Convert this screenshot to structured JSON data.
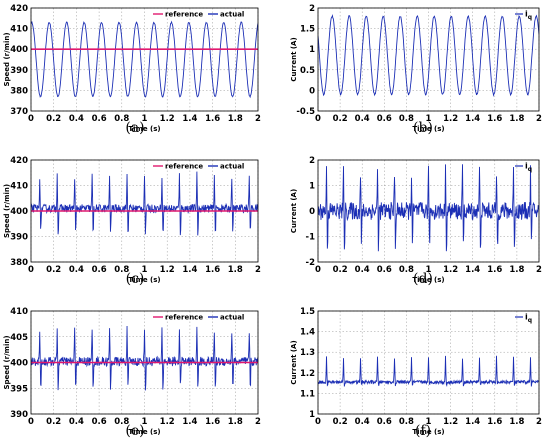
{
  "colors": {
    "reference": "#e0186e",
    "actual": "#1c2fb5",
    "iq": "#1c2fb5",
    "grid": "#9a9a9a",
    "axis": "#000000"
  },
  "panel_labels": [
    "(a)",
    "(b)",
    "(c)",
    "(d)",
    "(e)",
    "(f)"
  ],
  "chart_data": [
    {
      "id": "a",
      "type": "line",
      "xlabel": "Time  (s)",
      "ylabel": "Speed (r/min)",
      "xlim": [
        0,
        2
      ],
      "ylim": [
        370,
        420
      ],
      "xticks": [
        "0",
        "0.2",
        "0.4",
        "0.6",
        "0.8",
        "1",
        "1.2",
        "1.4",
        "1.6",
        "1.8",
        "2"
      ],
      "yticks": [
        "370",
        "380",
        "390",
        "400",
        "410",
        "420"
      ],
      "grid": true,
      "legend": {
        "placement": "top-right",
        "entries": [
          "reference",
          "actual"
        ]
      },
      "series": [
        {
          "name": "reference",
          "kind": "constant",
          "value": 400
        },
        {
          "name": "actual",
          "kind": "sine",
          "offset": 395,
          "amplitude": 18,
          "cycles": 13,
          "phase": 1.3,
          "noise": 0.3
        }
      ]
    },
    {
      "id": "b",
      "type": "line",
      "xlabel": "Time  (s)",
      "ylabel": "Current  (A)",
      "xlim": [
        0,
        2
      ],
      "ylim": [
        -0.5,
        2
      ],
      "xticks": [
        "0",
        "0.2",
        "0.4",
        "0.6",
        "0.8",
        "1",
        "1.2",
        "1.4",
        "1.6",
        "1.8",
        "2"
      ],
      "yticks": [
        "-0.5",
        "0",
        "0.5",
        "1",
        "1.5",
        "2"
      ],
      "grid": true,
      "legend": {
        "placement": "top-right",
        "entries": [
          "i_q"
        ]
      },
      "series": [
        {
          "name": "i_q",
          "kind": "sine",
          "offset": 0.85,
          "amplitude": 0.95,
          "cycles": 13,
          "phase": 2.6,
          "noise": 0.02
        }
      ]
    },
    {
      "id": "c",
      "type": "line",
      "xlabel": "Time  (s)",
      "ylabel": "Speed (r/min)",
      "xlim": [
        0,
        2
      ],
      "ylim": [
        380,
        420
      ],
      "xticks": [
        "0",
        "0.2",
        "0.4",
        "0.6",
        "0.8",
        "1",
        "1.2",
        "1.4",
        "1.6",
        "1.8",
        "2"
      ],
      "yticks": [
        "380",
        "390",
        "400",
        "410",
        "420"
      ],
      "grid": true,
      "legend": {
        "placement": "top-right",
        "entries": [
          "reference",
          "actual"
        ]
      },
      "series": [
        {
          "name": "reference",
          "kind": "constant",
          "value": 400
        },
        {
          "name": "actual",
          "kind": "spiky",
          "base": 401,
          "up": 13,
          "down": -12,
          "cycles": 13,
          "noise": 1.6
        }
      ]
    },
    {
      "id": "d",
      "type": "line",
      "xlabel": "Time  (s)",
      "ylabel": "Current  (A)",
      "xlim": [
        0,
        2
      ],
      "ylim": [
        -2,
        2
      ],
      "xticks": [
        "0",
        "0.2",
        "0.4",
        "0.6",
        "0.8",
        "1",
        "1.2",
        "1.4",
        "1.6",
        "1.8",
        "2"
      ],
      "yticks": [
        "-2",
        "-1",
        "0",
        "1",
        "2"
      ],
      "grid": true,
      "legend": {
        "placement": "top-right",
        "entries": [
          "i_q"
        ]
      },
      "series": [
        {
          "name": "i_q",
          "kind": "spiky",
          "base": 0,
          "up": 1.5,
          "down": -1.6,
          "cycles": 13,
          "noise": 0.35
        }
      ]
    },
    {
      "id": "e",
      "type": "line",
      "xlabel": "Time  (s)",
      "ylabel": "Speed (r/min)",
      "xlim": [
        0,
        2
      ],
      "ylim": [
        390,
        410
      ],
      "xticks": [
        "0",
        "0.2",
        "0.4",
        "0.6",
        "0.8",
        "1",
        "1.2",
        "1.4",
        "1.6",
        "1.8",
        "2"
      ],
      "yticks": [
        "390",
        "395",
        "400",
        "405",
        "410"
      ],
      "grid": true,
      "legend": {
        "placement": "top-right",
        "entries": [
          "reference",
          "actual"
        ]
      },
      "series": [
        {
          "name": "reference",
          "kind": "constant",
          "value": 400
        },
        {
          "name": "actual",
          "kind": "spiky",
          "base": 400.2,
          "up": 6,
          "down": -6.5,
          "cycles": 13,
          "noise": 0.9
        }
      ]
    },
    {
      "id": "f",
      "type": "line",
      "xlabel": "Time  (s)",
      "ylabel": "Current  (A)",
      "xlim": [
        0,
        2
      ],
      "ylim": [
        1,
        1.5
      ],
      "xticks": [
        "0",
        "0.2",
        "0.4",
        "0.6",
        "0.8",
        "1",
        "1.2",
        "1.4",
        "1.6",
        "1.8",
        "2"
      ],
      "yticks": [
        "1",
        "1.1",
        "1.2",
        "1.3",
        "1.4",
        "1.5"
      ],
      "grid": true,
      "legend": {
        "placement": "top-right",
        "entries": [
          "i_q"
        ]
      },
      "series": [
        {
          "name": "i_q",
          "kind": "spiky",
          "base": 1.155,
          "up": 0.12,
          "down": -0.02,
          "cycles": 13,
          "noise": 0.008
        }
      ]
    }
  ]
}
